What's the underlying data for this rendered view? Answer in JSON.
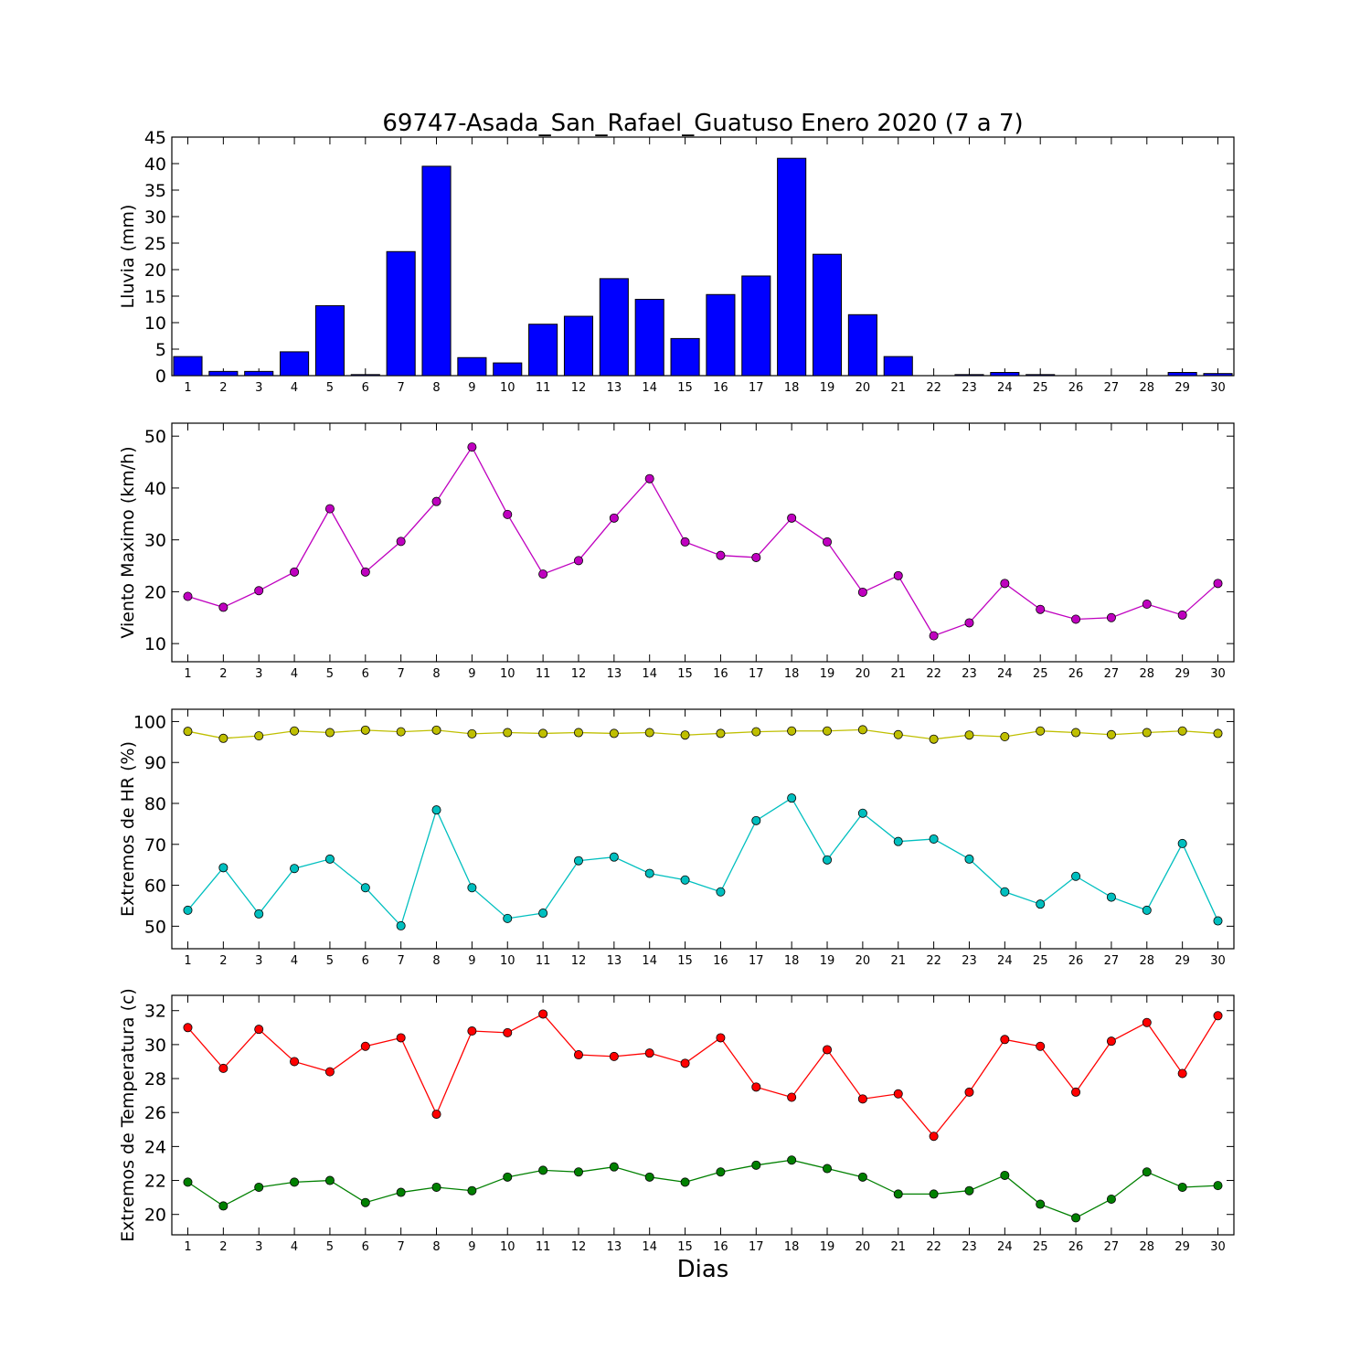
{
  "title": "69747-Asada_San_Rafael_Guatuso Enero 2020  (7 a 7)",
  "xlabel": "Dias",
  "chart_data": [
    {
      "type": "bar",
      "ylabel": "Lluvia (mm)",
      "ylim": [
        0,
        45
      ],
      "yticks": [
        0,
        5,
        10,
        15,
        20,
        25,
        30,
        35,
        40,
        45
      ],
      "categories": [
        "1",
        "2",
        "3",
        "4",
        "5",
        "6",
        "7",
        "8",
        "9",
        "10",
        "11",
        "12",
        "13",
        "14",
        "15",
        "16",
        "17",
        "18",
        "19",
        "20",
        "21",
        "22",
        "23",
        "24",
        "25",
        "26",
        "27",
        "28",
        "29",
        "30"
      ],
      "values": [
        3.6,
        0.8,
        0.8,
        4.5,
        13.2,
        0.2,
        23.4,
        39.5,
        3.4,
        2.4,
        9.7,
        11.2,
        18.3,
        14.4,
        7.0,
        15.3,
        18.8,
        41.0,
        22.9,
        11.5,
        3.6,
        0,
        0.2,
        0.6,
        0.2,
        0,
        0,
        0,
        0.6,
        0.4
      ],
      "color": "#0000ff"
    },
    {
      "type": "line",
      "ylabel": "Viento Maximo (km/h)",
      "ylim": [
        6.5,
        52.5
      ],
      "yticks": [
        10,
        20,
        30,
        40,
        50
      ],
      "categories": [
        "1",
        "2",
        "3",
        "4",
        "5",
        "6",
        "7",
        "8",
        "9",
        "10",
        "11",
        "12",
        "13",
        "14",
        "15",
        "16",
        "17",
        "18",
        "19",
        "20",
        "21",
        "22",
        "23",
        "24",
        "25",
        "26",
        "27",
        "28",
        "29",
        "30"
      ],
      "series": [
        {
          "values": [
            19.1,
            17.0,
            20.2,
            23.8,
            36.0,
            23.8,
            29.7,
            37.4,
            47.9,
            34.9,
            23.4,
            26.0,
            34.2,
            41.8,
            29.6,
            27.0,
            26.6,
            34.2,
            29.6,
            19.9,
            23.1,
            11.5,
            14.0,
            21.6,
            16.6,
            14.7,
            15.0,
            17.6,
            15.5,
            21.6
          ],
          "color": "#bf00bf"
        }
      ]
    },
    {
      "type": "line",
      "ylabel": "Extremos de HR (%)",
      "ylim": [
        44.5,
        103
      ],
      "yticks": [
        50,
        60,
        70,
        80,
        90,
        100
      ],
      "categories": [
        "1",
        "2",
        "3",
        "4",
        "5",
        "6",
        "7",
        "8",
        "9",
        "10",
        "11",
        "12",
        "13",
        "14",
        "15",
        "16",
        "17",
        "18",
        "19",
        "20",
        "21",
        "22",
        "23",
        "24",
        "25",
        "26",
        "27",
        "28",
        "29",
        "30"
      ],
      "series": [
        {
          "values": [
            97.6,
            95.9,
            96.5,
            97.7,
            97.3,
            97.9,
            97.5,
            97.9,
            97.0,
            97.3,
            97.1,
            97.3,
            97.1,
            97.3,
            96.7,
            97.1,
            97.5,
            97.7,
            97.7,
            98.0,
            96.8,
            95.7,
            96.7,
            96.3,
            97.7,
            97.3,
            96.8,
            97.3,
            97.7,
            97.1
          ],
          "color": "#bfbf00"
        },
        {
          "values": [
            53.9,
            64.3,
            53.0,
            64.1,
            66.4,
            59.4,
            50.1,
            78.4,
            59.4,
            51.9,
            53.2,
            66.0,
            66.9,
            62.9,
            61.3,
            58.4,
            75.8,
            81.3,
            66.2,
            77.6,
            70.7,
            71.3,
            66.4,
            58.4,
            55.4,
            62.2,
            57.1,
            53.9,
            70.2,
            51.3
          ],
          "color": "#00bfbf"
        }
      ]
    },
    {
      "type": "line",
      "ylabel": "Extremos de Temperatura (c)",
      "ylim": [
        18.8,
        32.9
      ],
      "yticks": [
        20,
        22,
        24,
        26,
        28,
        30,
        32
      ],
      "categories": [
        "1",
        "2",
        "3",
        "4",
        "5",
        "6",
        "7",
        "8",
        "9",
        "10",
        "11",
        "12",
        "13",
        "14",
        "15",
        "16",
        "17",
        "18",
        "19",
        "20",
        "21",
        "22",
        "23",
        "24",
        "25",
        "26",
        "27",
        "28",
        "29",
        "30"
      ],
      "series": [
        {
          "values": [
            31.0,
            28.6,
            30.9,
            29.0,
            28.4,
            29.9,
            30.4,
            25.9,
            30.8,
            30.7,
            31.8,
            29.4,
            29.3,
            29.5,
            28.9,
            30.4,
            27.5,
            26.9,
            29.7,
            26.8,
            27.1,
            24.6,
            27.2,
            30.3,
            29.9,
            27.2,
            30.2,
            31.3,
            28.3,
            31.7
          ],
          "color": "#ff0000"
        },
        {
          "values": [
            21.9,
            20.5,
            21.6,
            21.9,
            22.0,
            20.7,
            21.3,
            21.6,
            21.4,
            22.2,
            22.6,
            22.5,
            22.8,
            22.2,
            21.9,
            22.5,
            22.9,
            23.2,
            22.7,
            22.2,
            21.2,
            21.2,
            21.4,
            22.3,
            20.6,
            19.8,
            20.9,
            22.5,
            21.6,
            21.7
          ],
          "color": "#008000"
        }
      ]
    }
  ]
}
